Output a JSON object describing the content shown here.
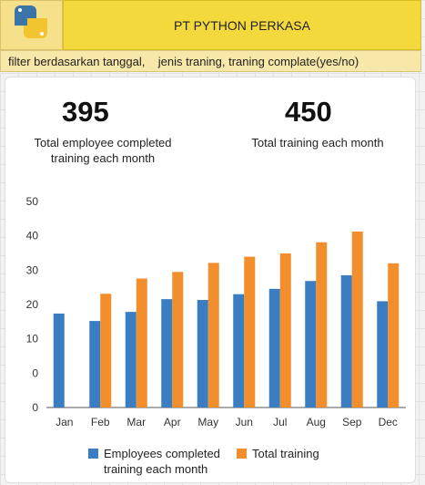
{
  "header": {
    "title": "PT PYTHON PERKASA",
    "logo_icon": "python-logo-icon",
    "filter_text": "filter berdasarkan tanggal,    jenis traning, traning complate(yes/no)"
  },
  "kpis": [
    {
      "value": "395",
      "label": "Total employee completed training each month"
    },
    {
      "value": "450",
      "label": "Total training each month"
    }
  ],
  "colors": {
    "header_bg": "#f4d93c",
    "filter_bg": "#f7e7a8",
    "series_employees": "#3a7dc2",
    "series_training": "#f28e2b"
  },
  "chart_data": {
    "type": "bar",
    "categories": [
      "Jan",
      "Feb",
      "Mar",
      "Apr",
      "May",
      "Jun",
      "Jul",
      "Aug",
      "Sep",
      "Dec"
    ],
    "series": [
      {
        "name": "Employees completed training each month",
        "values": [
          22.8,
          21.0,
          23.2,
          26.3,
          26.1,
          27.5,
          28.8,
          30.7,
          32.1,
          25.8
        ]
      },
      {
        "name": "Total training",
        "values": [
          null,
          27.6,
          31.3,
          32.9,
          35.1,
          36.6,
          37.4,
          40.1,
          42.7,
          35.0
        ]
      }
    ],
    "yticks": [
      "0",
      "0",
      "10",
      "20",
      "30",
      "40",
      "50"
    ],
    "ylim": [
      0,
      50
    ],
    "grid": false,
    "legend": "bottom"
  }
}
